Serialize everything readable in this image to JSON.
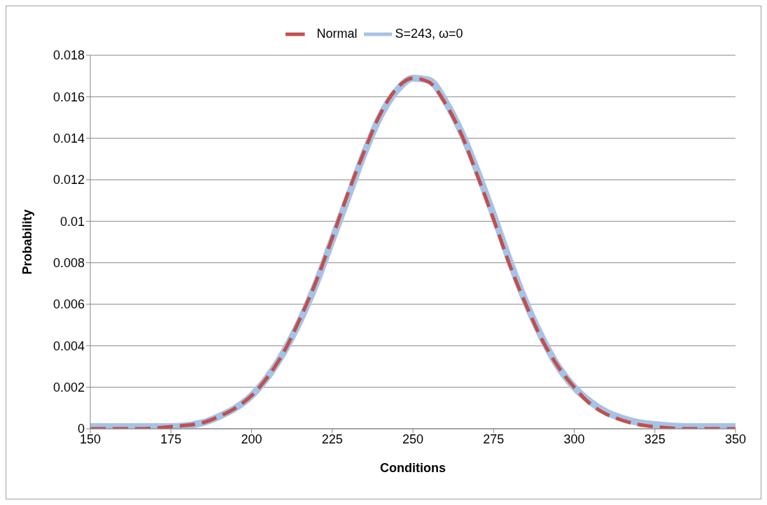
{
  "chart_data": {
    "type": "line",
    "xlabel": "Conditions",
    "ylabel": "Probability",
    "x": [
      150,
      165,
      175,
      185,
      190,
      195,
      200,
      205,
      210,
      215,
      220,
      225,
      230,
      235,
      240,
      245,
      250,
      255,
      260,
      265,
      270,
      275,
      280,
      285,
      290,
      295,
      300,
      305,
      310,
      315,
      320,
      325,
      335,
      350
    ],
    "series": [
      {
        "name": "S=243, ω=0",
        "color": "#a7c2e6",
        "line_style": "solid",
        "values": [
          0.0001,
          0.0001,
          0.0001,
          0.0003,
          0.0006,
          0.001,
          0.0016,
          0.0025,
          0.0037,
          0.0052,
          0.007,
          0.0091,
          0.0112,
          0.0133,
          0.0151,
          0.0163,
          0.0169,
          0.0168,
          0.0158,
          0.0143,
          0.0124,
          0.0103,
          0.0081,
          0.0061,
          0.0044,
          0.003,
          0.002,
          0.0013,
          0.0008,
          0.0005,
          0.0003,
          0.0002,
          0.0001,
          0.0001
        ]
      },
      {
        "name": "Normal",
        "color": "#c0504d",
        "line_style": "dashed",
        "values": [
          0,
          0,
          0.0001,
          0.0003,
          0.0006,
          0.001,
          0.0016,
          0.0025,
          0.0037,
          0.0053,
          0.0071,
          0.0092,
          0.0114,
          0.0134,
          0.0152,
          0.0164,
          0.0169,
          0.0167,
          0.0157,
          0.0142,
          0.0122,
          0.0101,
          0.0079,
          0.006,
          0.0043,
          0.003,
          0.002,
          0.0012,
          0.0007,
          0.0004,
          0.0002,
          0.0001,
          0,
          0
        ]
      }
    ],
    "xlim": [
      150,
      350
    ],
    "xticks": [
      150,
      175,
      200,
      225,
      250,
      275,
      300,
      325,
      350
    ],
    "ylim": [
      0,
      0.018
    ],
    "yticks": [
      0,
      0.002,
      0.004,
      0.006,
      0.008,
      0.01,
      0.012,
      0.014,
      0.016,
      0.018
    ],
    "grid": "y",
    "legend": "top"
  }
}
